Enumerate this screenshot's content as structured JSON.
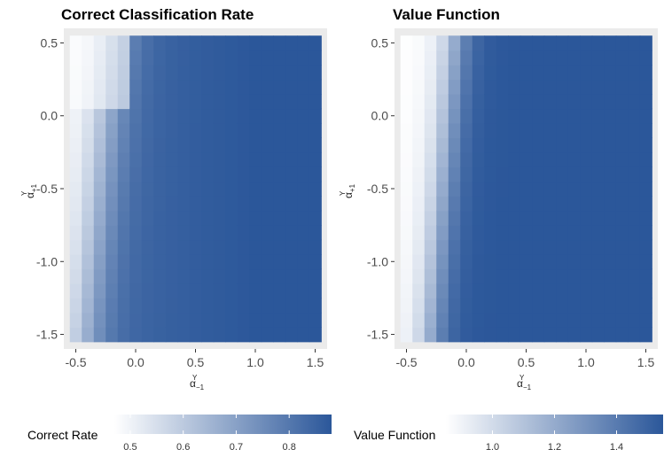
{
  "chart_data": [
    {
      "type": "heatmap",
      "title": "Correct Classification Rate",
      "xlabel": "α_-1^Y",
      "ylabel": "α_+1^Y",
      "x_ticks": [
        "-0.5",
        "0.0",
        "0.5",
        "1.0",
        "1.5"
      ],
      "y_ticks": [
        "-1.5",
        "-1.0",
        "-0.5",
        "0.0",
        "0.5"
      ],
      "xlim": [
        -0.6,
        1.6
      ],
      "ylim": [
        -1.6,
        0.6
      ],
      "x_range": [
        -0.55,
        1.55
      ],
      "y_range": [
        -1.55,
        0.55
      ],
      "grid": "21x21",
      "value_range": [
        0.47,
        0.88
      ],
      "low_color": "#ffffff",
      "high_color": "#2b579a",
      "legend": {
        "title": "Correct Rate",
        "ticks": [
          "0.5",
          "0.6",
          "0.7",
          "0.8"
        ],
        "tick_values": [
          0.5,
          0.6,
          0.7,
          0.8
        ],
        "placement": "bottom"
      }
    },
    {
      "type": "heatmap",
      "title": "Value Function",
      "xlabel": "α_-1^Y",
      "ylabel": "α_+1^Y",
      "x_ticks": [
        "-0.5",
        "0.0",
        "0.5",
        "1.0",
        "1.5"
      ],
      "y_ticks": [
        "-1.5",
        "-1.0",
        "-0.5",
        "0.0",
        "0.5"
      ],
      "xlim": [
        -0.6,
        1.6
      ],
      "ylim": [
        -1.6,
        0.6
      ],
      "x_range": [
        -0.55,
        1.55
      ],
      "y_range": [
        -1.55,
        0.55
      ],
      "grid": "21x21",
      "value_range": [
        0.85,
        1.55
      ],
      "low_color": "#ffffff",
      "high_color": "#2b579a",
      "legend": {
        "title": "Value Function",
        "ticks": [
          "1.0",
          "1.2",
          "1.4"
        ],
        "tick_values": [
          1.0,
          1.2,
          1.4
        ],
        "placement": "bottom"
      }
    }
  ],
  "colors": {
    "panel_bg": "#ebebeb",
    "low": "#ffffff",
    "high": "#2b579a"
  }
}
